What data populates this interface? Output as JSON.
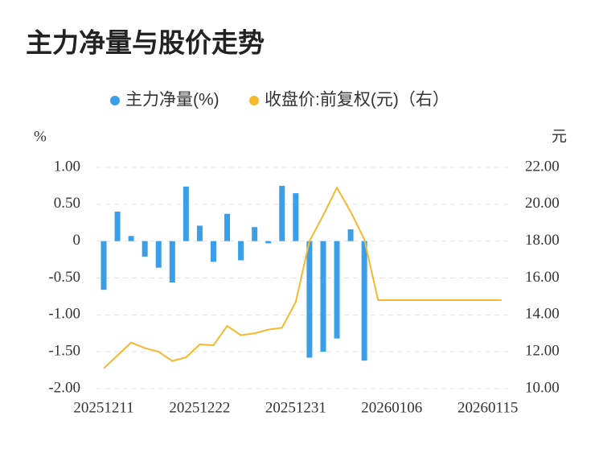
{
  "chart_data": {
    "type": "bar_line",
    "title": "主力净量与股价走势",
    "ylabel": "%",
    "y2label": "元",
    "categories": [
      "20251211",
      null,
      null,
      null,
      null,
      null,
      null,
      "20251222",
      null,
      null,
      null,
      null,
      null,
      null,
      "20251231",
      null,
      null,
      null,
      null,
      null,
      null,
      "20260106",
      null,
      null,
      null,
      null,
      null,
      null,
      "20260115",
      null
    ],
    "series": [
      {
        "name": "主力净量(%)",
        "type": "bar",
        "color": "#3a9ee8",
        "values": [
          -0.66,
          0.4,
          0.07,
          -0.21,
          -0.36,
          -0.56,
          0.74,
          0.21,
          -0.28,
          0.37,
          -0.26,
          0.19,
          -0.03,
          0.75,
          0.65,
          -1.58,
          -1.5,
          -1.32,
          0.16,
          -1.62,
          null,
          null,
          null,
          null,
          null,
          null,
          null,
          null,
          null,
          null
        ]
      },
      {
        "name": "收盘价:前复权(元)（右）",
        "type": "line",
        "axis": "y2",
        "color": "#f5b82e",
        "values": [
          11.1,
          11.8,
          12.5,
          12.2,
          12.0,
          11.5,
          11.7,
          12.4,
          12.35,
          13.4,
          12.9,
          13.0,
          13.2,
          13.3,
          14.7,
          18.0,
          19.4,
          20.9,
          19.6,
          18.1,
          14.8,
          14.8,
          14.8,
          14.8,
          14.8,
          14.8,
          14.8,
          14.8,
          14.8,
          14.8
        ]
      }
    ],
    "ylim": [
      -2,
      1
    ],
    "yticks": [
      {
        "value": -2,
        "label": "-2.00"
      },
      {
        "value": -1.5,
        "label": "-1.50"
      },
      {
        "value": -1,
        "label": "-1.00"
      },
      {
        "value": -0.5,
        "label": "-0.50"
      },
      0,
      {
        "value": 0.5,
        "label": "0.50"
      },
      {
        "value": 1,
        "label": "1.00"
      }
    ],
    "y2lim": [
      10,
      22
    ],
    "y2ticks": [
      {
        "value": 10,
        "label": "10.00"
      },
      {
        "value": 12,
        "label": "12.00"
      },
      {
        "value": 14,
        "label": "14.00"
      },
      {
        "value": 16,
        "label": "16.00"
      },
      {
        "value": 18,
        "label": "18.00"
      },
      {
        "value": 20,
        "label": "20.00"
      },
      {
        "value": 22,
        "label": "22.00"
      }
    ],
    "grid": true
  }
}
